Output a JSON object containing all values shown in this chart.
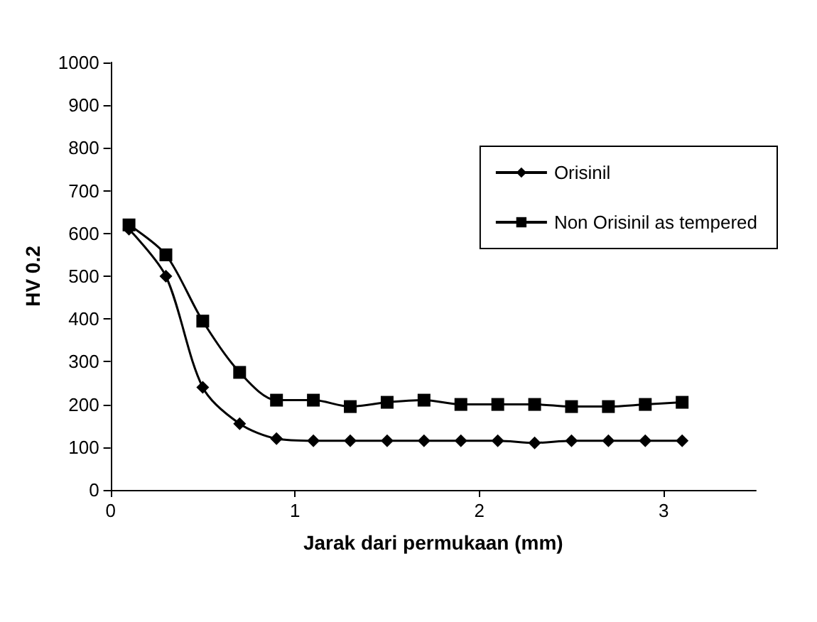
{
  "chart_data": {
    "type": "line",
    "xlabel": "Jarak dari permukaan (mm)",
    "ylabel": "HV 0.2",
    "x": [
      0.1,
      0.3,
      0.5,
      0.7,
      0.9,
      1.1,
      1.3,
      1.5,
      1.7,
      1.9,
      2.1,
      2.3,
      2.5,
      2.7,
      2.9,
      3.1
    ],
    "xlim": [
      0,
      3.5
    ],
    "xticks": [
      0,
      1,
      2,
      3
    ],
    "ylim": [
      0,
      1000
    ],
    "yticks": [
      0,
      100,
      200,
      300,
      400,
      500,
      600,
      700,
      800,
      900,
      1000
    ],
    "legend": "top right",
    "grid": false,
    "series": [
      {
        "name": "Orisinil",
        "color": "#000000",
        "marker": "diamond",
        "values": [
          610,
          500,
          240,
          155,
          120,
          115,
          115,
          115,
          115,
          115,
          115,
          110,
          115,
          115,
          115,
          115
        ]
      },
      {
        "name": "Non Orisinil as tempered",
        "color": "#000000",
        "marker": "square",
        "values": [
          620,
          550,
          395,
          275,
          210,
          210,
          195,
          205,
          210,
          200,
          200,
          200,
          195,
          195,
          200,
          205
        ]
      }
    ]
  }
}
